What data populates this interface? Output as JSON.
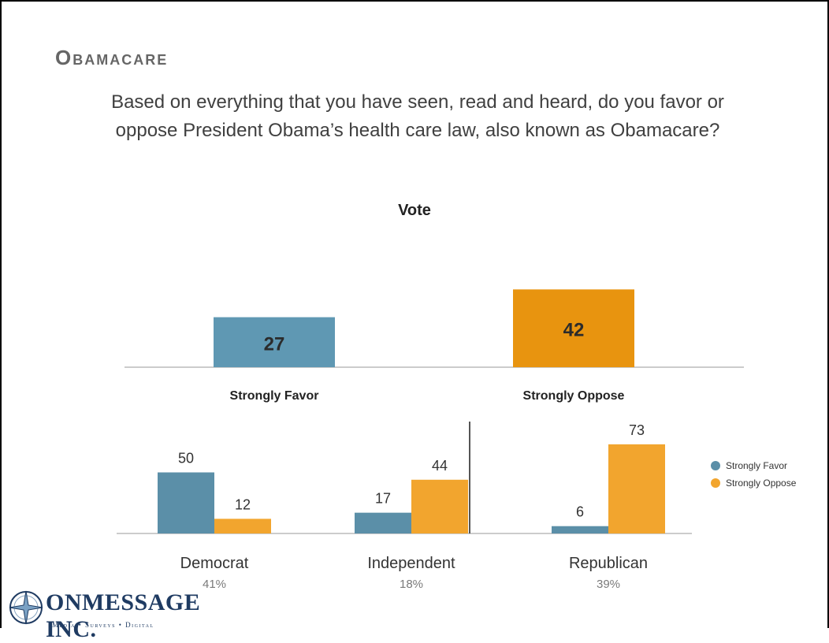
{
  "slide": {
    "title": "Obamacare",
    "question": "Based on everything that you have seen, read and heard, do you favor or oppose President Obama’s health care law, also known as Obamacare?"
  },
  "chart_data": [
    {
      "type": "bar",
      "title": "Vote",
      "categories": [
        "Strongly Favor",
        "Strongly Oppose"
      ],
      "values": [
        27,
        42
      ],
      "colors": [
        "#5f98b3",
        "#e8940f"
      ]
    },
    {
      "type": "bar",
      "categories": [
        "Democrat",
        "Independent",
        "Republican"
      ],
      "category_shares": [
        "41%",
        "18%",
        "39%"
      ],
      "series": [
        {
          "name": "Strongly Favor",
          "values": [
            50,
            17,
            6
          ],
          "color": "#5b8fa8"
        },
        {
          "name": "Strongly Oppose",
          "values": [
            12,
            44,
            73
          ],
          "color": "#f2a52e"
        }
      ],
      "legend": "right"
    }
  ],
  "logo": {
    "name": "ONMESSAGE INC.",
    "tagline": "Media • Surveys • Digital"
  }
}
